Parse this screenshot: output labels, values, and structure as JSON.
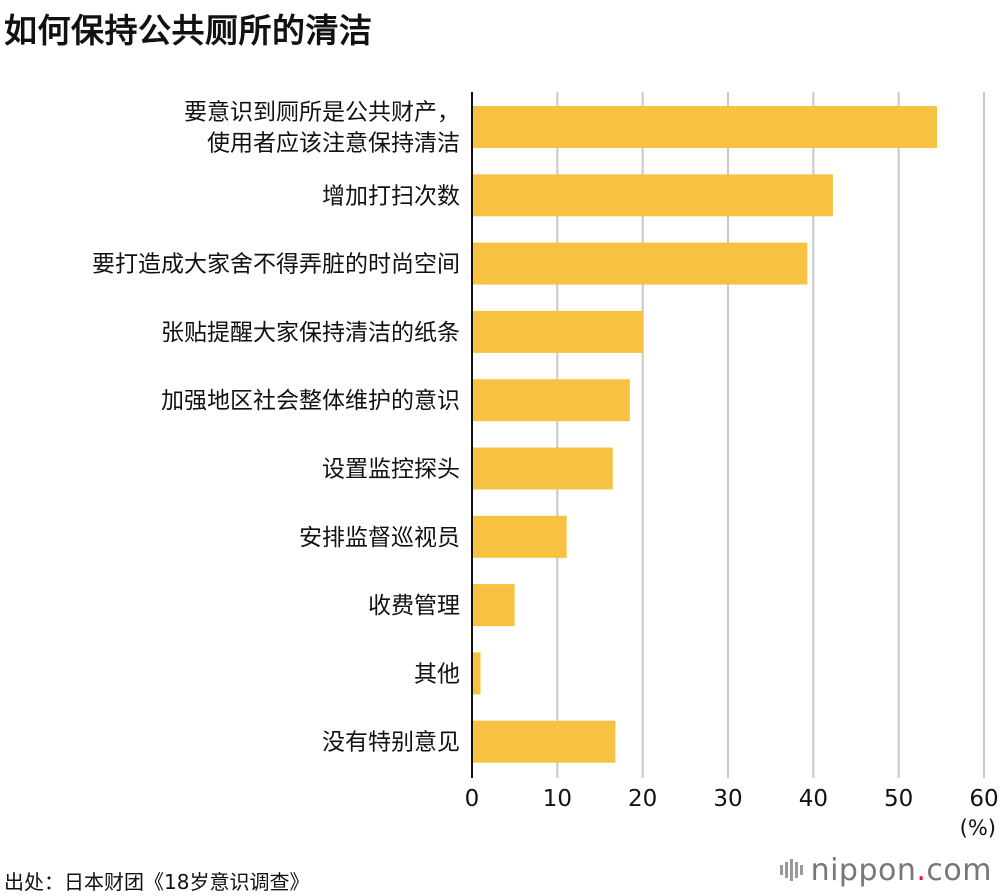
{
  "title": "如何保持公共厕所的清洁",
  "source": "出处：日本财团《18岁意识调查》",
  "logo": {
    "name": "nippon",
    "dot": ".",
    "tld": "com"
  },
  "colors": {
    "bar": "#F7C242",
    "grid": "#C8C8C8",
    "axis": "#111111"
  },
  "chart_data": {
    "type": "bar",
    "orientation": "horizontal",
    "categories": [
      [
        "要意识到厕所是公共财产，",
        "使用者应该注意保持清洁"
      ],
      [
        "增加打扫次数"
      ],
      [
        "要打造成大家舍不得弄脏的时尚空间"
      ],
      [
        "张贴提醒大家保持清洁的纸条"
      ],
      [
        "加强地区社会整体维护的意识"
      ],
      [
        "设置监控探头"
      ],
      [
        "安排监督巡视员"
      ],
      [
        "收费管理"
      ],
      [
        "其他"
      ],
      [
        "没有特别意见"
      ]
    ],
    "values": [
      54.5,
      42.3,
      39.3,
      20.1,
      18.5,
      16.5,
      11.1,
      5.0,
      1.0,
      16.8
    ],
    "xlim": [
      0,
      60
    ],
    "xticks": [
      0,
      10,
      20,
      30,
      40,
      50,
      60
    ],
    "xunit": "(%)",
    "grid": true
  }
}
